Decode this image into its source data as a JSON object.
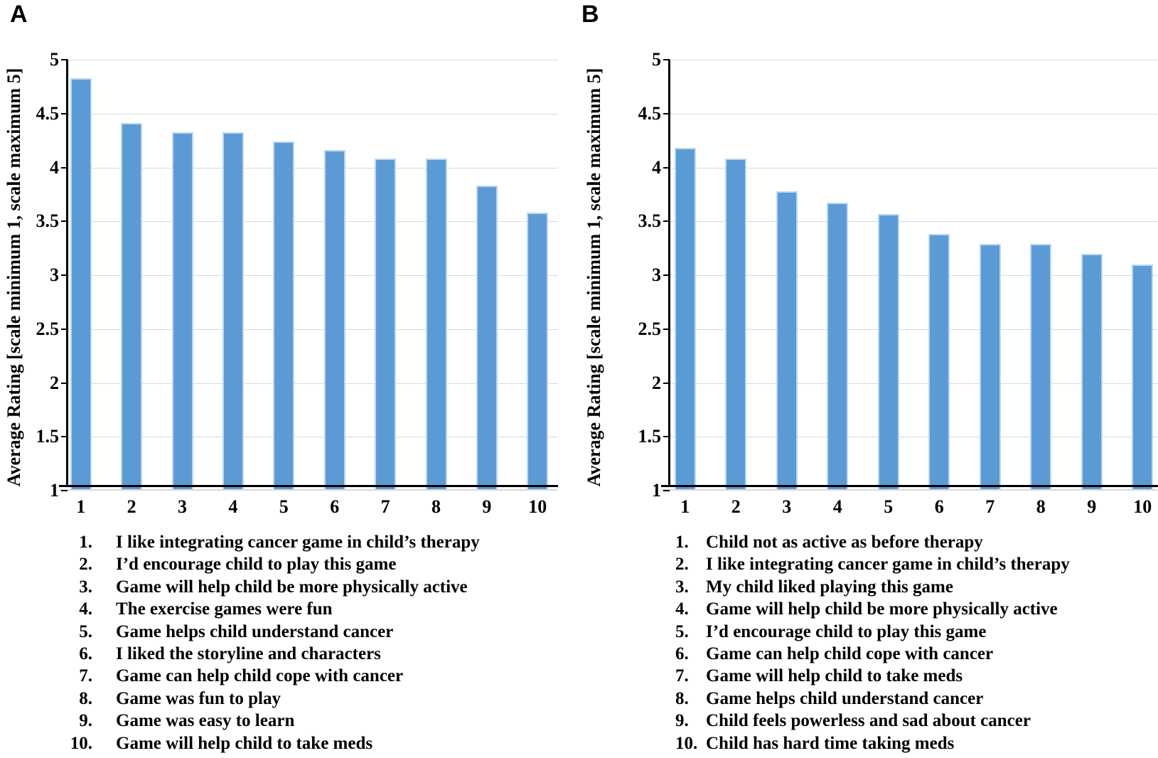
{
  "figure": {
    "bar_color": "#5B9BD5",
    "bar_border_color": "#BDD7EE",
    "grid_color": "#D9D9D9",
    "axis_color": "#000000",
    "text_color": "#000000",
    "background": "#FFFFFF"
  },
  "chart_data": [
    {
      "type": "bar",
      "panel": "A",
      "title": "",
      "xlabel": "",
      "ylabel": "Average Rating [scale minimum 1, scale maximum 5]",
      "ylim": [
        1,
        5
      ],
      "yticks": [
        5,
        4.5,
        4,
        3.5,
        3,
        2.5,
        2,
        1.5,
        1
      ],
      "grid": true,
      "legend_position": "below",
      "categories": [
        "1",
        "2",
        "3",
        "4",
        "5",
        "6",
        "7",
        "8",
        "9",
        "10"
      ],
      "values": [
        4.83,
        4.41,
        4.33,
        4.33,
        4.24,
        4.16,
        4.08,
        4.08,
        3.83,
        3.58
      ],
      "item_labels": [
        {
          "num": "1.",
          "text": "I like integrating cancer game in child’s therapy"
        },
        {
          "num": "2.",
          "text": "I’d encourage child to play this game"
        },
        {
          "num": "3.",
          "text": "Game will help child be more physically active"
        },
        {
          "num": "4.",
          "text": "The exercise games were fun"
        },
        {
          "num": "5.",
          "text": "Game helps child understand cancer"
        },
        {
          "num": "6.",
          "text": "I liked the storyline and characters"
        },
        {
          "num": "7.",
          "text": "Game can help child cope with cancer"
        },
        {
          "num": "8.",
          "text": "Game was fun to play"
        },
        {
          "num": "9.",
          "text": "Game was easy to learn"
        },
        {
          "num": "10.",
          "text": "Game will help child to take meds"
        }
      ]
    },
    {
      "type": "bar",
      "panel": "B",
      "title": "",
      "xlabel": "",
      "ylabel": "Average Rating [scale minimum 1, scale maximum 5]",
      "ylim": [
        1,
        5
      ],
      "yticks": [
        5,
        4.5,
        4,
        3.5,
        3,
        2.5,
        2,
        1.5,
        1
      ],
      "grid": true,
      "legend_position": "below",
      "categories": [
        "1",
        "2",
        "3",
        "4",
        "5",
        "6",
        "7",
        "8",
        "9",
        "10"
      ],
      "values": [
        4.18,
        4.08,
        3.78,
        3.67,
        3.57,
        3.38,
        3.29,
        3.29,
        3.2,
        3.1
      ],
      "item_labels": [
        {
          "num": "1.",
          "text": "Child not as active as before therapy"
        },
        {
          "num": "2.",
          "text": "I like integrating cancer game in child’s therapy"
        },
        {
          "num": "3.",
          "text": "My child liked playing this game"
        },
        {
          "num": "4.",
          "text": "Game will help child be more physically active"
        },
        {
          "num": "5.",
          "text": "I’d encourage child to play this game"
        },
        {
          "num": "6.",
          "text": "Game can help child cope with cancer"
        },
        {
          "num": "7.",
          "text": "Game will help child to take meds"
        },
        {
          "num": "8.",
          "text": "Game helps child understand cancer"
        },
        {
          "num": "9.",
          "text": "Child feels powerless and sad about cancer"
        },
        {
          "num": "10.",
          "text": "Child has hard time taking meds"
        }
      ]
    }
  ]
}
